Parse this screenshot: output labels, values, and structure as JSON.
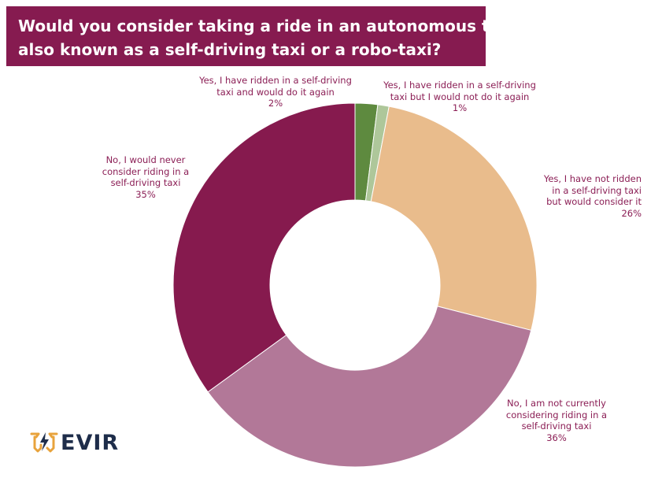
{
  "chart_data": {
    "type": "pie",
    "donut": true,
    "title_lines": [
      "Would you consider taking a ride in an autonomous taxi,",
      "also known as a  self-driving taxi or a robo-taxi?"
    ],
    "slices": [
      {
        "lines": [
          "Yes, I have ridden in a self-driving",
          "taxi and would do it again"
        ],
        "value": 2,
        "value_label": "2%",
        "color": "#5e8a3f"
      },
      {
        "lines": [
          "Yes, I have ridden in a self-driving",
          "taxi but I would not do it again"
        ],
        "value": 1,
        "value_label": "1%",
        "color": "#aec79a"
      },
      {
        "lines": [
          "Yes, I have not ridden",
          "in a self-driving taxi",
          "but would consider it"
        ],
        "value": 26,
        "value_label": "26%",
        "color": "#e9bc8c"
      },
      {
        "lines": [
          "No, I am not currently",
          "considering riding in a",
          "self-driving taxi"
        ],
        "value": 36,
        "value_label": "36%",
        "color": "#b27898"
      },
      {
        "lines": [
          "No, I would never",
          "consider riding in a",
          "self-driving taxi"
        ],
        "value": 35,
        "value_label": "35%",
        "color": "#861a4e"
      }
    ]
  },
  "logo": {
    "text": "EVIR",
    "icon": "evir-logo-icon",
    "icon_color": "#e8a33c"
  }
}
